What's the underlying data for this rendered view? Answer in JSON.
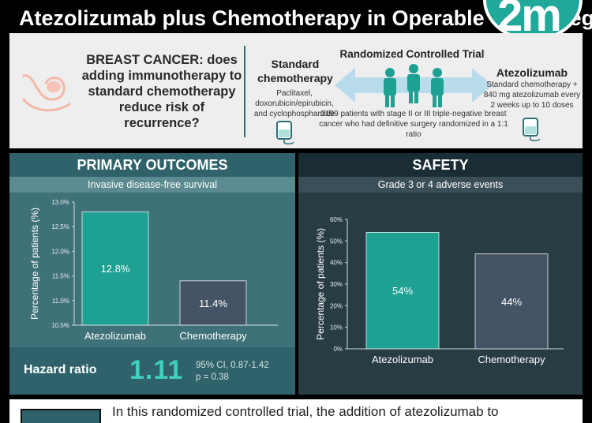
{
  "header": {
    "title": "Atezolizumab plus Chemotherapy in Operable Triple-Negative Breast Cancer",
    "logo_text": "2m"
  },
  "trial": {
    "question": "BREAST CANCER: does adding immunotherapy to standard chemotherapy reduce risk of recurrence?",
    "standard_title": "Standard chemotherapy",
    "standard_desc": "Paclitaxel, doxorubicin/epirubicin, and cyclophosphamide",
    "rct_title": "Randomized Controlled Trial",
    "rct_desc": "2199 patients with stage II or III triple-negative breast cancer who had definitive surgery randomized in a 1:1 ratio",
    "atezolizumab_title": "Atezolizumab",
    "atezolizumab_desc": "Standard chemotherapy + 840 mg atezolizumab every 2 weeks up to 10 doses",
    "colors": {
      "accent": "#1ea093",
      "text": "#2a2a2a"
    }
  },
  "primary": {
    "heading": "PRIMARY OUTCOMES",
    "subheading": "Invasive disease-free survival",
    "hazard_label": "Hazard ratio",
    "hazard_value": "1.11",
    "ci": "95% CI, 0.87-1.42",
    "p": "p = 0.38"
  },
  "safety": {
    "heading": "SAFETY",
    "subheading": "Grade 3 or 4 adverse events"
  },
  "chart_data": [
    {
      "type": "bar",
      "title": "Invasive disease-free survival",
      "ylabel": "Percentage of patients (%)",
      "categories": [
        "Atezolizumab",
        "Chemotherapy"
      ],
      "values": [
        12.8,
        11.4
      ],
      "value_labels": [
        "12.8%",
        "11.4%"
      ],
      "ylim": [
        10.5,
        13.0
      ],
      "ticks": [
        10.5,
        11.0,
        11.5,
        12.0,
        12.5,
        13.0
      ],
      "tick_labels": [
        "10.5%",
        "11.0%",
        "11.5%",
        "12.0%",
        "12.5%",
        "13.0%"
      ],
      "colors": [
        "#1ea093",
        "#445466"
      ],
      "grid": false
    },
    {
      "type": "bar",
      "title": "Grade 3 or 4 adverse events",
      "ylabel": "Percentage of patients (%)",
      "categories": [
        "Atezolizumab",
        "Chemotherapy"
      ],
      "values": [
        54,
        44
      ],
      "value_labels": [
        "54%",
        "44%"
      ],
      "ylim": [
        0,
        60
      ],
      "ticks": [
        0,
        10,
        20,
        30,
        40,
        50,
        60
      ],
      "tick_labels": [
        "0%",
        "10%",
        "20%",
        "30%",
        "40%",
        "50%",
        "60%"
      ],
      "colors": [
        "#1ea093",
        "#445466"
      ],
      "grid": false
    }
  ],
  "bottom": {
    "text": "In this randomized controlled trial, the addition of atezolizumab to"
  }
}
